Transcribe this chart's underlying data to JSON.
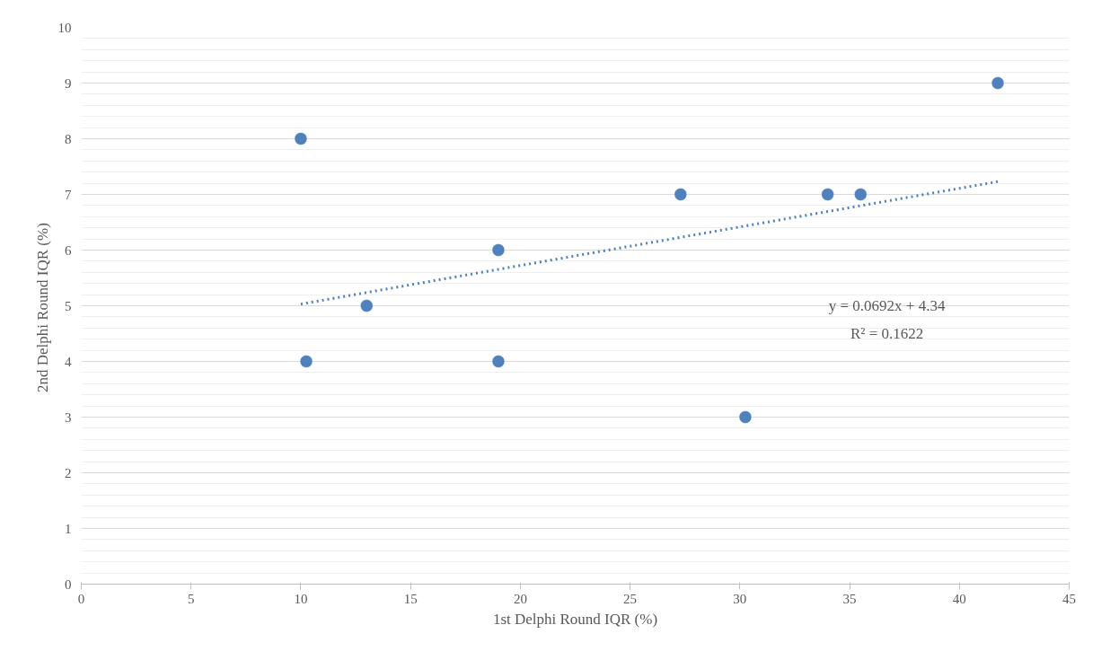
{
  "chart_data": {
    "type": "scatter",
    "xlabel": "1st Delphi Round IQR (%)",
    "ylabel": "2nd  Delphi Round IQR (%)",
    "xlim": [
      0,
      45
    ],
    "xticks": [
      0,
      5,
      10,
      15,
      20,
      25,
      30,
      35,
      40,
      45
    ],
    "ylim": [
      0,
      10
    ],
    "yticks": [
      0,
      1,
      2,
      3,
      4,
      5,
      6,
      7,
      8,
      9,
      10
    ],
    "grid": "y",
    "marker": "circle",
    "series": [
      {
        "color": "#4f81bd",
        "x": [
          10.0,
          10.25,
          13.0,
          19.0,
          19.0,
          27.3,
          30.25,
          34.0,
          35.5,
          41.75
        ],
        "values": [
          8,
          4,
          5,
          6,
          4,
          7,
          3,
          7,
          7,
          9
        ]
      },
      {
        "type": "line",
        "color": "#4f81bd",
        "line_style": "dotted",
        "marker": "none",
        "x": [
          10.0,
          41.75
        ],
        "values": [
          5.03,
          7.23
        ]
      }
    ],
    "annotations": [
      "y = 0.0692x + 4.34",
      "R² = 0.1622"
    ]
  }
}
